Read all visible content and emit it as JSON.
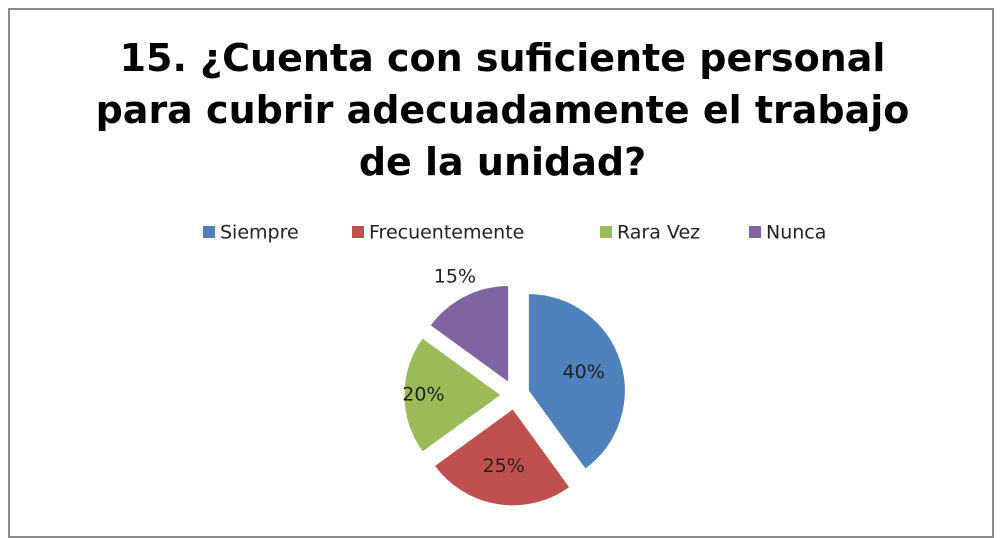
{
  "chart_data": {
    "type": "pie",
    "title": "15. ¿Cuenta con suficiente personal para cubrir adecuadamente el trabajo de la unidad?",
    "categories": [
      "Siempre",
      "Frecuentemente",
      "Rara Vez",
      "Nunca"
    ],
    "values": [
      40,
      25,
      20,
      15
    ],
    "value_labels": [
      "40%",
      "25%",
      "20%",
      "15%"
    ],
    "colors": [
      "#4f81bd",
      "#c0504d",
      "#9bbb59",
      "#8064a2"
    ],
    "legend": "top"
  }
}
